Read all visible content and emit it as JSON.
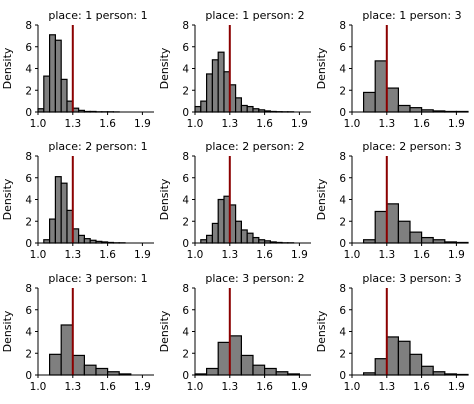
{
  "chart_data": [
    {
      "type": "bar",
      "title": "place: 1 person: 1",
      "ylabel": "Density",
      "xlim": [
        1.0,
        2.0
      ],
      "ylim": [
        0,
        8
      ],
      "xticks": [
        "1.0",
        "1.3",
        "1.6",
        "1.9"
      ],
      "yticks": [
        "0",
        "2",
        "4",
        "6",
        "8"
      ],
      "bin_edges": [
        1.0,
        1.05,
        1.1,
        1.15,
        1.2,
        1.25,
        1.3,
        1.35,
        1.4,
        1.45,
        1.5,
        1.55,
        1.6,
        1.65,
        1.7,
        1.75,
        1.8,
        1.85,
        1.9,
        1.95
      ],
      "values": [
        0.3,
        3.3,
        7.1,
        6.6,
        3.0,
        1.0,
        0.35,
        0.15,
        0.05,
        0.05,
        0.02,
        0.02,
        0.02,
        0.01,
        0.0,
        0.0,
        0.0,
        0.0,
        0.0
      ],
      "reference_line": 1.3,
      "reference_color": "#8b0000",
      "bar_color": "#7f7f7f"
    },
    {
      "type": "bar",
      "title": "place: 1 person: 2",
      "ylabel": "Density",
      "xlim": [
        1.0,
        2.0
      ],
      "ylim": [
        0,
        8
      ],
      "xticks": [
        "1.0",
        "1.3",
        "1.6",
        "1.9"
      ],
      "yticks": [
        "0",
        "2",
        "4",
        "6",
        "8"
      ],
      "bin_edges": [
        1.0,
        1.05,
        1.1,
        1.15,
        1.2,
        1.25,
        1.3,
        1.35,
        1.4,
        1.45,
        1.5,
        1.55,
        1.6,
        1.65,
        1.7,
        1.75,
        1.8,
        1.85,
        1.9,
        1.95
      ],
      "values": [
        0.5,
        1.0,
        3.5,
        4.8,
        5.5,
        3.7,
        2.5,
        1.3,
        0.6,
        0.5,
        0.3,
        0.2,
        0.1,
        0.05,
        0.03,
        0.02,
        0.02,
        0.0,
        0.0
      ],
      "reference_line": 1.3,
      "reference_color": "#8b0000",
      "bar_color": "#7f7f7f"
    },
    {
      "type": "bar",
      "title": "place: 1 person: 3",
      "ylabel": "Density",
      "xlim": [
        1.0,
        2.0
      ],
      "ylim": [
        0,
        8
      ],
      "xticks": [
        "1.0",
        "1.3",
        "1.6",
        "1.9"
      ],
      "yticks": [
        "0",
        "2",
        "4",
        "6",
        "8"
      ],
      "bin_edges": [
        1.1,
        1.2,
        1.3,
        1.4,
        1.5,
        1.6,
        1.7,
        1.8,
        1.9,
        2.0
      ],
      "values": [
        1.8,
        4.7,
        2.2,
        0.6,
        0.4,
        0.2,
        0.1,
        0.05,
        0.05
      ],
      "reference_line": 1.3,
      "reference_color": "#8b0000",
      "bar_color": "#7f7f7f"
    },
    {
      "type": "bar",
      "title": "place: 2 person: 1",
      "ylabel": "Density",
      "xlim": [
        1.0,
        2.0
      ],
      "ylim": [
        0,
        8
      ],
      "xticks": [
        "1.0",
        "1.3",
        "1.6",
        "1.9"
      ],
      "yticks": [
        "0",
        "2",
        "4",
        "6",
        "8"
      ],
      "bin_edges": [
        1.05,
        1.1,
        1.15,
        1.2,
        1.25,
        1.3,
        1.35,
        1.4,
        1.45,
        1.5,
        1.55,
        1.6,
        1.65,
        1.7,
        1.75
      ],
      "values": [
        0.3,
        2.2,
        6.1,
        5.5,
        3.0,
        1.3,
        0.7,
        0.4,
        0.25,
        0.15,
        0.1,
        0.05,
        0.02,
        0.02
      ],
      "reference_line": 1.3,
      "reference_color": "#8b0000",
      "bar_color": "#7f7f7f"
    },
    {
      "type": "bar",
      "title": "place: 2 person: 2",
      "ylabel": "Density",
      "xlim": [
        1.0,
        2.0
      ],
      "ylim": [
        0,
        8
      ],
      "xticks": [
        "1.0",
        "1.3",
        "1.6",
        "1.9"
      ],
      "yticks": [
        "0",
        "2",
        "4",
        "6",
        "8"
      ],
      "bin_edges": [
        1.05,
        1.1,
        1.15,
        1.2,
        1.25,
        1.3,
        1.35,
        1.4,
        1.45,
        1.5,
        1.55,
        1.6,
        1.65,
        1.7,
        1.75,
        1.8,
        1.85
      ],
      "values": [
        0.3,
        0.7,
        1.8,
        4.0,
        4.3,
        3.5,
        2.0,
        1.2,
        0.9,
        0.5,
        0.3,
        0.2,
        0.1,
        0.05,
        0.02,
        0.02
      ],
      "reference_line": 1.3,
      "reference_color": "#8b0000",
      "bar_color": "#7f7f7f"
    },
    {
      "type": "bar",
      "title": "place: 2 person: 3",
      "ylabel": "Density",
      "xlim": [
        1.0,
        2.0
      ],
      "ylim": [
        0,
        8
      ],
      "xticks": [
        "1.0",
        "1.3",
        "1.6",
        "1.9"
      ],
      "yticks": [
        "0",
        "2",
        "4",
        "6",
        "8"
      ],
      "bin_edges": [
        1.1,
        1.2,
        1.3,
        1.4,
        1.5,
        1.6,
        1.7,
        1.8,
        1.9,
        2.0
      ],
      "values": [
        0.3,
        2.9,
        3.6,
        2.0,
        1.0,
        0.5,
        0.3,
        0.1,
        0.05
      ],
      "reference_line": 1.3,
      "reference_color": "#8b0000",
      "bar_color": "#7f7f7f"
    },
    {
      "type": "bar",
      "title": "place: 3 person: 1",
      "ylabel": "Density",
      "xlim": [
        1.0,
        2.0
      ],
      "ylim": [
        0,
        8
      ],
      "xticks": [
        "1.0",
        "1.3",
        "1.6",
        "1.9"
      ],
      "yticks": [
        "0",
        "2",
        "4",
        "6",
        "8"
      ],
      "bin_edges": [
        1.1,
        1.2,
        1.3,
        1.4,
        1.5,
        1.6,
        1.7,
        1.8
      ],
      "values": [
        1.9,
        4.6,
        1.8,
        0.9,
        0.6,
        0.3,
        0.1
      ],
      "reference_line": 1.3,
      "reference_color": "#8b0000",
      "bar_color": "#7f7f7f"
    },
    {
      "type": "bar",
      "title": "place: 3 person: 2",
      "ylabel": "Density",
      "xlim": [
        1.0,
        2.0
      ],
      "ylim": [
        0,
        8
      ],
      "xticks": [
        "1.0",
        "1.3",
        "1.6",
        "1.9"
      ],
      "yticks": [
        "0",
        "2",
        "4",
        "6",
        "8"
      ],
      "bin_edges": [
        1.0,
        1.1,
        1.2,
        1.3,
        1.4,
        1.5,
        1.6,
        1.7,
        1.8,
        1.9
      ],
      "values": [
        0.1,
        0.6,
        3.0,
        3.6,
        1.8,
        0.9,
        0.6,
        0.3,
        0.1
      ],
      "reference_line": 1.3,
      "reference_color": "#8b0000",
      "bar_color": "#7f7f7f"
    },
    {
      "type": "bar",
      "title": "place: 3 person: 3",
      "ylabel": "Density",
      "xlim": [
        1.0,
        2.0
      ],
      "ylim": [
        0,
        8
      ],
      "xticks": [
        "1.0",
        "1.3",
        "1.6",
        "1.9"
      ],
      "yticks": [
        "0",
        "2",
        "4",
        "6",
        "8"
      ],
      "bin_edges": [
        1.1,
        1.2,
        1.3,
        1.4,
        1.5,
        1.6,
        1.7,
        1.8,
        1.9,
        2.0
      ],
      "values": [
        0.2,
        1.5,
        3.5,
        3.1,
        1.9,
        0.8,
        0.3,
        0.1,
        0.05
      ],
      "reference_line": 1.3,
      "reference_color": "#8b0000",
      "bar_color": "#7f7f7f"
    }
  ]
}
